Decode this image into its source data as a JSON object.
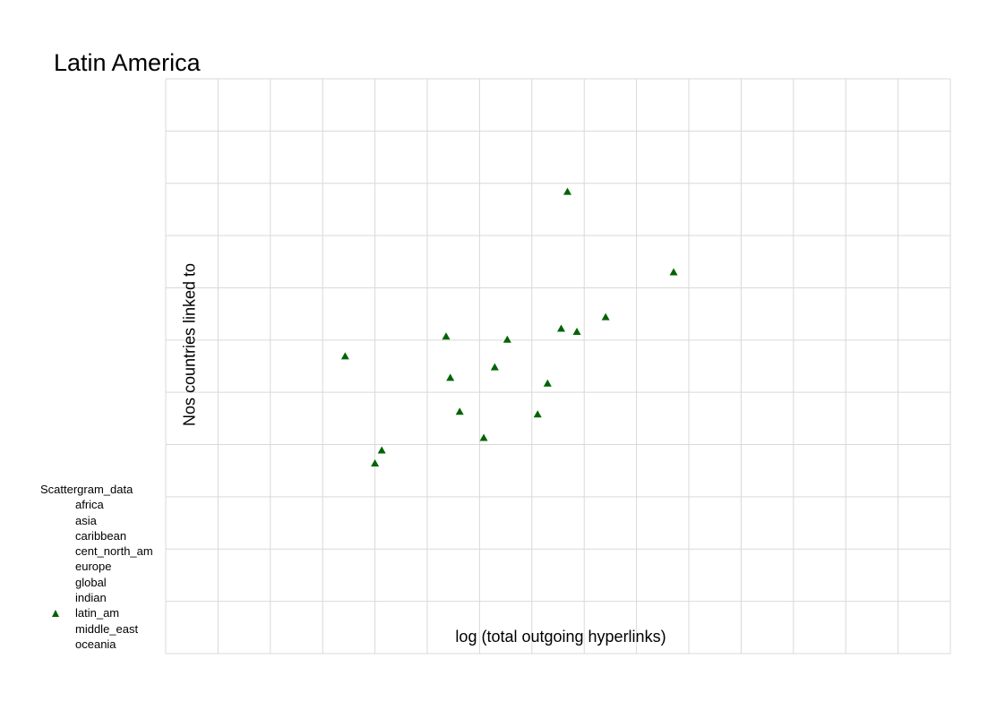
{
  "chart_data": {
    "type": "scatter",
    "title": "Latin America",
    "xlabel": "log (total outgoing hyperlinks)",
    "ylabel": "Nos countries linked to",
    "xlim": [
      0,
      15
    ],
    "ylim": [
      0,
      11
    ],
    "grid": true,
    "legend": {
      "title": "Scattergram_data",
      "placement": "bottom-left",
      "entries": [
        "africa",
        "asia",
        "caribbean",
        "cent_north_am",
        "europe",
        "global",
        "indian",
        "latin_am",
        "middle_east",
        "oceania"
      ],
      "marked_entry": "latin_am"
    },
    "series": [
      {
        "name": "latin_am",
        "marker": "triangle",
        "color": "#006400",
        "points": [
          {
            "x": 3.43,
            "y": 5.69
          },
          {
            "x": 4.0,
            "y": 3.64
          },
          {
            "x": 4.13,
            "y": 3.89
          },
          {
            "x": 5.36,
            "y": 6.07
          },
          {
            "x": 5.44,
            "y": 5.28
          },
          {
            "x": 5.62,
            "y": 4.63
          },
          {
            "x": 6.08,
            "y": 4.13
          },
          {
            "x": 6.29,
            "y": 5.48
          },
          {
            "x": 6.53,
            "y": 6.01
          },
          {
            "x": 7.11,
            "y": 4.58
          },
          {
            "x": 7.3,
            "y": 5.17
          },
          {
            "x": 7.56,
            "y": 6.22
          },
          {
            "x": 7.68,
            "y": 8.84
          },
          {
            "x": 7.86,
            "y": 6.16
          },
          {
            "x": 8.41,
            "y": 6.44
          },
          {
            "x": 9.71,
            "y": 7.3
          }
        ]
      }
    ]
  }
}
